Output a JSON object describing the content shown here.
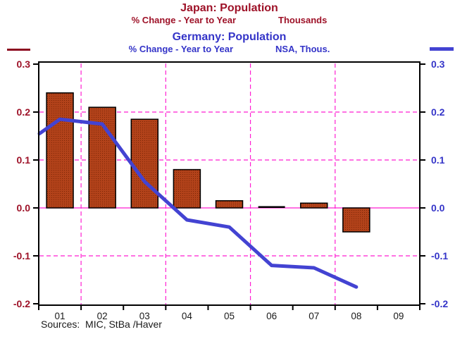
{
  "header": {
    "japan": {
      "title": "Japan: Population",
      "unit_left": "% Change - Year to Year",
      "unit_right": "Thousands"
    },
    "germany": {
      "title": "Germany: Population",
      "unit_left": "% Change - Year to Year",
      "unit_right": "NSA, Thous."
    }
  },
  "footer": {
    "source_note": "Sources:  MIC, StBa /Haver"
  },
  "colors": {
    "japan_red": "#9E1228",
    "japan_legend_red": "#8C0A20",
    "germany_blue": "#3434C8",
    "line_blue": "#4343D2",
    "grid_magenta": "#FF1FD2",
    "bar_fill": "#B2421A",
    "bar_dot": "#7C2606",
    "bar_border": "#000000",
    "axis_black": "#000000",
    "year_label_black": "#1A1A1A"
  },
  "chart_data": {
    "type": "bar+line",
    "title": "Japan: Population / Germany: Population",
    "categories": [
      "01",
      "02",
      "03",
      "04",
      "05",
      "06",
      "07",
      "08",
      "09"
    ],
    "series": [
      {
        "name": "Japan: Population",
        "plot": "bar",
        "axis": "left",
        "units": "% Change - Year to Year, Thousands",
        "values": [
          0.24,
          0.21,
          0.185,
          0.08,
          0.015,
          0.0,
          0.01,
          -0.05,
          null
        ]
      },
      {
        "name": "Germany: Population",
        "plot": "line",
        "axis": "right",
        "units": "% Change - Year to Year, NSA, Thous.",
        "left_edge_entry": 0.155,
        "values": [
          0.185,
          0.175,
          0.055,
          -0.025,
          -0.04,
          -0.12,
          -0.125,
          -0.165,
          null
        ]
      }
    ],
    "ylim": [
      -0.2,
      0.3
    ],
    "yticks": [
      0.3,
      0.2,
      0.1,
      0.0,
      -0.1,
      -0.2
    ],
    "y_gridlines_dashed": [
      0.2,
      0.1,
      -0.1
    ],
    "zero_line": true,
    "x_gridlines_after": [
      "01",
      "03",
      "05",
      "07"
    ],
    "grid": "on",
    "legend_position": "line swatches top-left (Japan) and top-right (Germany)"
  }
}
